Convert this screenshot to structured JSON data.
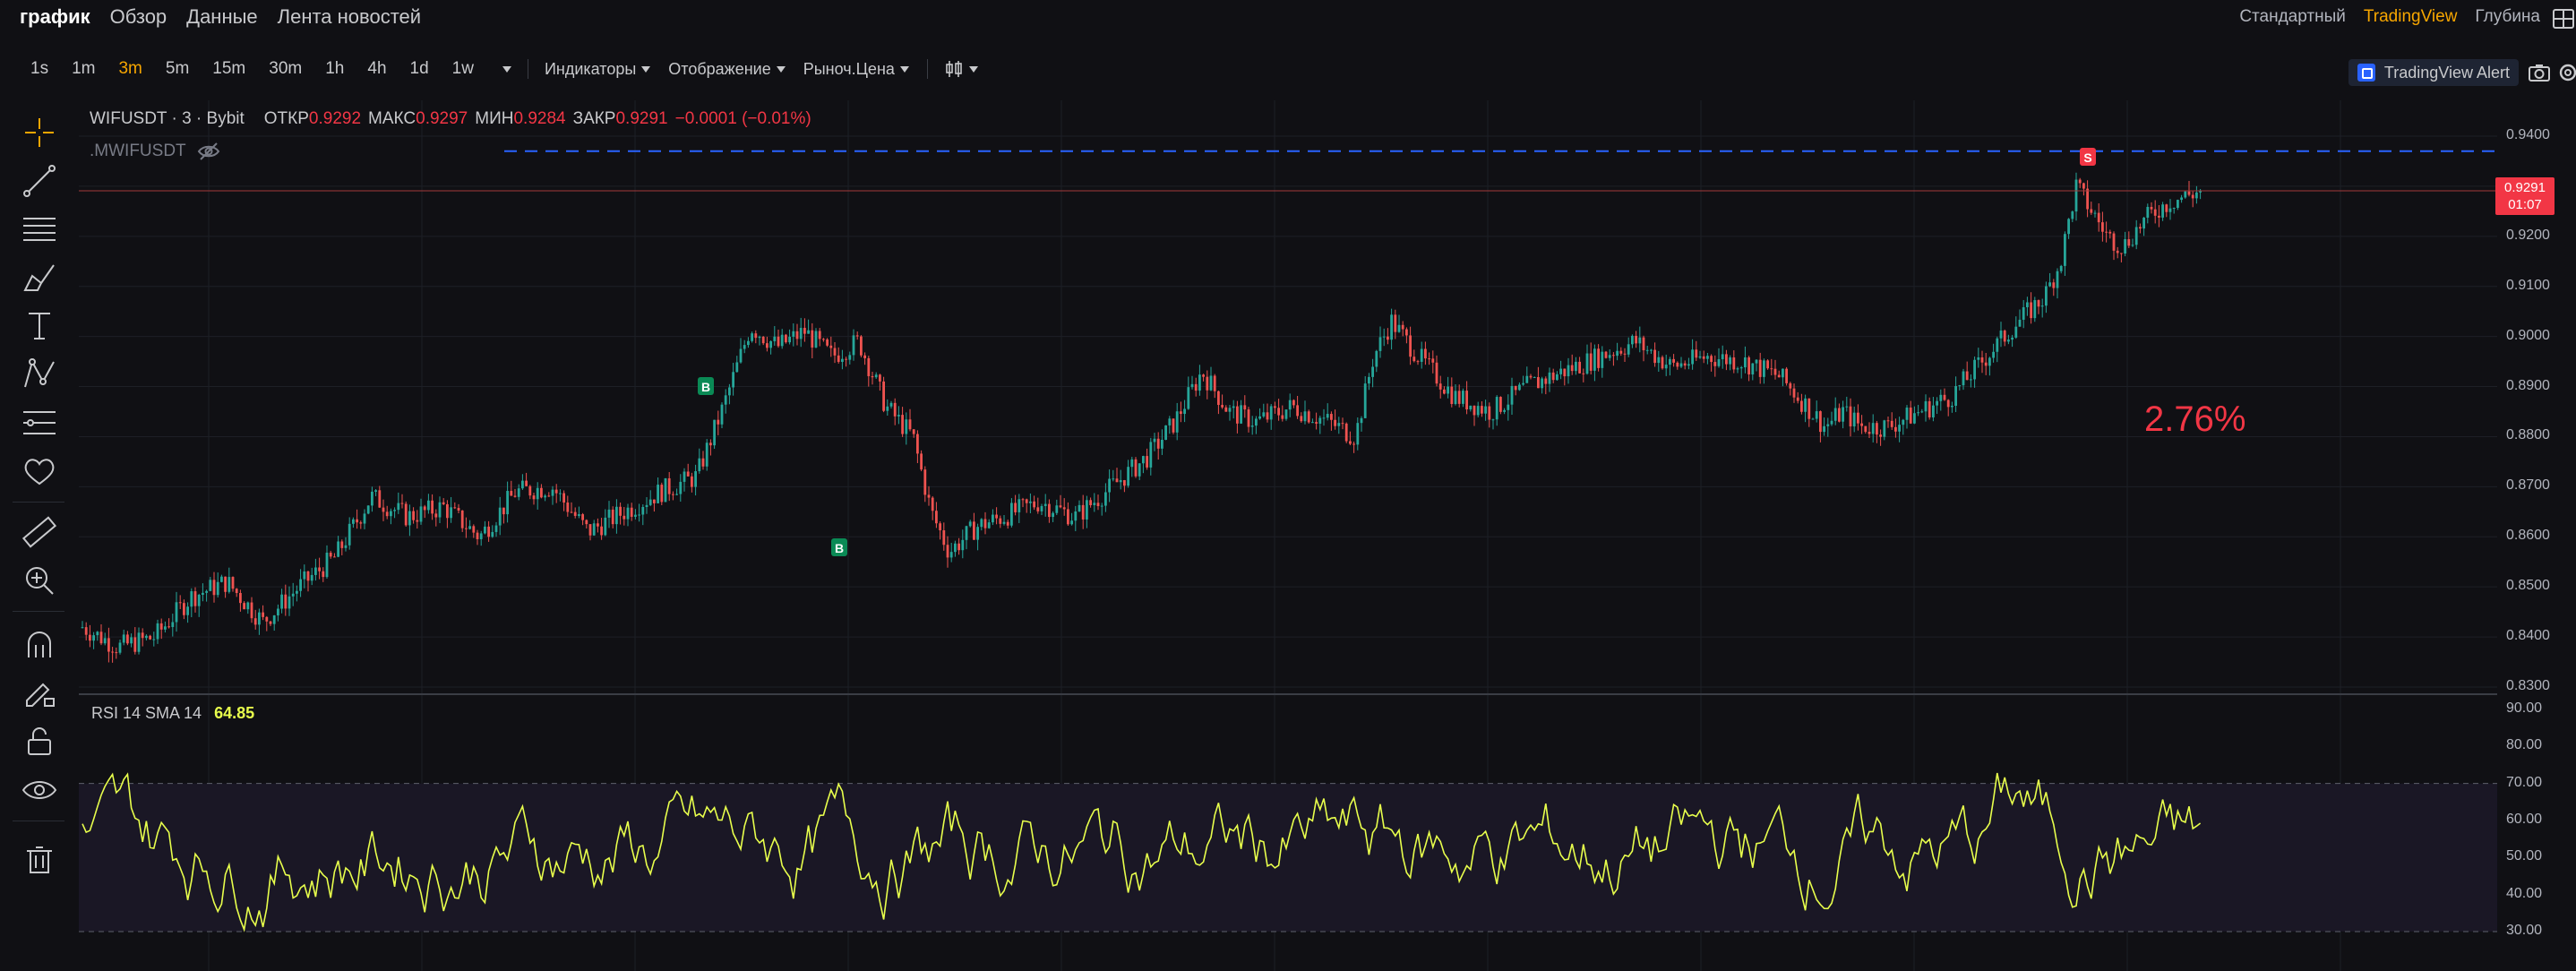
{
  "nav": {
    "tabs": [
      {
        "label": "график",
        "active": true
      },
      {
        "label": "Обзор",
        "active": false
      },
      {
        "label": "Данные",
        "active": false
      },
      {
        "label": "Лента новостей",
        "active": false
      }
    ],
    "views": [
      {
        "label": "Стандартный",
        "active": false
      },
      {
        "label": "TradingView",
        "active": true
      },
      {
        "label": "Глубина",
        "active": false
      }
    ]
  },
  "toolbar": {
    "intervals": [
      {
        "label": "1s",
        "active": false
      },
      {
        "label": "1m",
        "active": false
      },
      {
        "label": "3m",
        "active": true
      },
      {
        "label": "5m",
        "active": false
      },
      {
        "label": "15m",
        "active": false
      },
      {
        "label": "30m",
        "active": false
      },
      {
        "label": "1h",
        "active": false
      },
      {
        "label": "4h",
        "active": false
      },
      {
        "label": "1d",
        "active": false
      },
      {
        "label": "1w",
        "active": false
      }
    ],
    "indicators": "Индикаторы",
    "display": "Отображение",
    "market_price": "Рыноч.Цена",
    "alert": "TradingView Alert"
  },
  "legend": {
    "symbol": "WIFUSDT · 3 · Bybit",
    "open_label": "ОТКР",
    "open": "0.9292",
    "high_label": "МАКС",
    "high": "0.9297",
    "low_label": "МИН",
    "low": "0.9284",
    "close_label": "ЗАКР",
    "close": "0.9291",
    "change": "−0.0001 (−0.01%)",
    "mark_symbol": ".MWIFUSDT"
  },
  "rsi": {
    "label": "RSI 14 SMA 14",
    "value": "64.85",
    "upper": 70,
    "lower": 30,
    "ticks": [
      "90.00",
      "80.00",
      "70.00",
      "60.00",
      "50.00",
      "40.00",
      "30.00"
    ]
  },
  "price_axis": {
    "ticks": [
      "0.9400",
      "0.9300",
      "0.9200",
      "0.9100",
      "0.9000",
      "0.8900",
      "0.8800",
      "0.8700",
      "0.8600",
      "0.8500",
      "0.8400",
      "0.8300"
    ],
    "last_price": "0.9291",
    "countdown": "01:07"
  },
  "annotation": {
    "pct": "2.76%"
  },
  "markers": [
    {
      "type": "B"
    },
    {
      "type": "B"
    },
    {
      "type": "S"
    }
  ],
  "colors": {
    "up": "#26a69a",
    "down": "#ef5350",
    "rsi": "#e8ff4c",
    "accent": "#f7a600",
    "alert_line": "#2962ff"
  },
  "chart_data": {
    "type": "candlestick",
    "symbol": "WIFUSDT",
    "interval": "3m",
    "ylim": [
      0.83,
      0.94
    ],
    "close_path": [
      [
        0.0,
        0.842
      ],
      [
        0.02,
        0.838
      ],
      [
        0.04,
        0.84
      ],
      [
        0.06,
        0.848
      ],
      [
        0.08,
        0.851
      ],
      [
        0.1,
        0.843
      ],
      [
        0.12,
        0.85
      ],
      [
        0.14,
        0.856
      ],
      [
        0.16,
        0.868
      ],
      [
        0.18,
        0.864
      ],
      [
        0.2,
        0.866
      ],
      [
        0.22,
        0.86
      ],
      [
        0.24,
        0.869
      ],
      [
        0.26,
        0.87
      ],
      [
        0.28,
        0.861
      ],
      [
        0.3,
        0.865
      ],
      [
        0.32,
        0.869
      ],
      [
        0.34,
        0.872
      ],
      [
        0.355,
        0.886
      ],
      [
        0.37,
        0.902
      ],
      [
        0.385,
        0.898
      ],
      [
        0.4,
        0.901
      ],
      [
        0.415,
        0.896
      ],
      [
        0.43,
        0.899
      ],
      [
        0.445,
        0.886
      ],
      [
        0.46,
        0.88
      ],
      [
        0.47,
        0.865
      ],
      [
        0.48,
        0.857
      ],
      [
        0.495,
        0.862
      ],
      [
        0.51,
        0.864
      ],
      [
        0.53,
        0.867
      ],
      [
        0.55,
        0.864
      ],
      [
        0.57,
        0.87
      ],
      [
        0.59,
        0.876
      ],
      [
        0.605,
        0.883
      ],
      [
        0.62,
        0.893
      ],
      [
        0.635,
        0.885
      ],
      [
        0.65,
        0.883
      ],
      [
        0.67,
        0.886
      ],
      [
        0.69,
        0.883
      ],
      [
        0.705,
        0.88
      ],
      [
        0.715,
        0.896
      ],
      [
        0.725,
        0.903
      ],
      [
        0.74,
        0.896
      ],
      [
        0.76,
        0.888
      ],
      [
        0.78,
        0.885
      ],
      [
        0.8,
        0.89
      ],
      [
        0.82,
        0.893
      ],
      [
        0.84,
        0.896
      ],
      [
        0.86,
        0.899
      ],
      [
        0.88,
        0.894
      ],
      [
        0.9,
        0.896
      ],
      [
        0.92,
        0.895
      ],
      [
        0.94,
        0.892
      ],
      [
        0.955,
        0.886
      ],
      [
        0.965,
        0.882
      ],
      [
        0.975,
        0.885
      ],
      [
        0.985,
        0.882
      ]
    ],
    "close_path_2": [
      [
        0.0,
        0.882
      ],
      [
        0.1,
        0.885
      ],
      [
        0.2,
        0.888
      ],
      [
        0.3,
        0.895
      ],
      [
        0.4,
        0.902
      ],
      [
        0.5,
        0.908
      ],
      [
        0.55,
        0.915
      ],
      [
        0.6,
        0.93
      ],
      [
        0.65,
        0.925
      ],
      [
        0.7,
        0.92
      ],
      [
        0.75,
        0.918
      ],
      [
        0.8,
        0.922
      ],
      [
        0.85,
        0.925
      ],
      [
        0.9,
        0.927
      ],
      [
        1.0,
        0.9291
      ]
    ],
    "alert_level": 0.937,
    "rsi_series_note": "RSI oscillates mostly between 30 and 80"
  }
}
